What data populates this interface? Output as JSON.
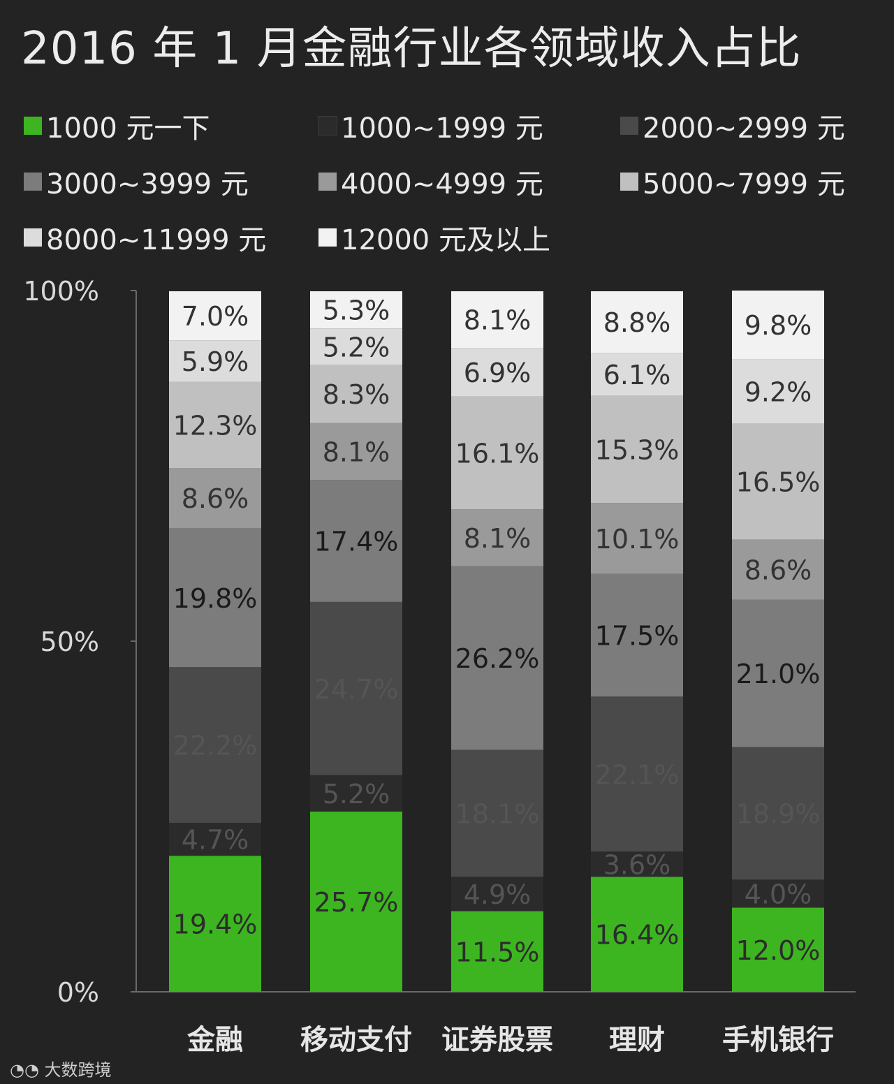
{
  "chart_data": {
    "type": "bar",
    "stacked": true,
    "title": "2016 年 1 月金融行业各领域收入占比",
    "categories": [
      "金融",
      "移动支付",
      "证券股票",
      "理财",
      "手机银行"
    ],
    "series": [
      {
        "name": "1000 元一下",
        "color": "#3db520",
        "values": [
          19.4,
          25.7,
          11.5,
          16.4,
          12.0
        ]
      },
      {
        "name": "1000~1999 元",
        "color": "#2b2b2b",
        "values": [
          4.7,
          5.2,
          4.9,
          3.6,
          4.0
        ]
      },
      {
        "name": "2000~2999 元",
        "color": "#4a4a4a",
        "values": [
          22.2,
          24.7,
          18.1,
          22.1,
          18.9
        ]
      },
      {
        "name": "3000~3999 元",
        "color": "#7c7c7c",
        "values": [
          19.8,
          17.4,
          26.2,
          17.5,
          21.0
        ]
      },
      {
        "name": "4000~4999 元",
        "color": "#9a9a9a",
        "values": [
          8.6,
          8.1,
          8.1,
          10.1,
          8.6
        ]
      },
      {
        "name": "5000~7999 元",
        "color": "#c0c0c0",
        "values": [
          12.3,
          8.3,
          16.1,
          15.3,
          16.5
        ]
      },
      {
        "name": "8000~11999 元",
        "color": "#dcdcdc",
        "values": [
          5.9,
          5.2,
          6.9,
          6.1,
          9.2
        ]
      },
      {
        "name": "12000 元及以上",
        "color": "#f2f2f2",
        "values": [
          7.0,
          5.3,
          8.1,
          8.8,
          9.8
        ]
      }
    ],
    "yticks": [
      "0%",
      "50%",
      "100%"
    ],
    "ylim": [
      0,
      100
    ],
    "legend_position": "top",
    "grid": false
  },
  "watermark": "大数跨境"
}
